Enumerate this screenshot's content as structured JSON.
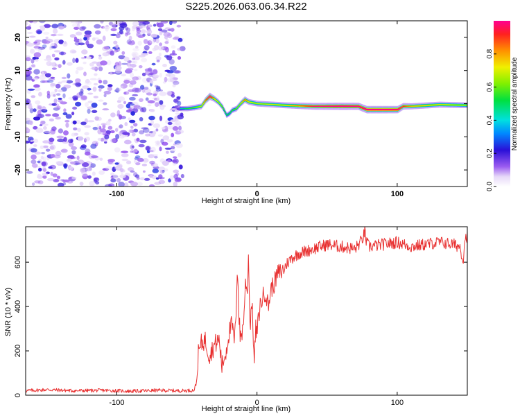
{
  "title": "S225.2026.063.06.34.R22",
  "chart_data": [
    {
      "type": "heatmap",
      "name": "spectrogram",
      "xlabel": "Height of straight line (km)",
      "ylabel": "Frequency (Hz)",
      "xlim": [
        -165,
        150
      ],
      "ylim": [
        -25,
        25
      ],
      "xticks": [
        -100,
        0,
        100
      ],
      "xtick_labels": [
        "-100",
        "0",
        "100"
      ],
      "yticks": [
        -20,
        -10,
        0,
        10,
        20
      ],
      "ytick_labels": [
        "-20",
        "-10",
        "0",
        "10",
        "20"
      ],
      "noise_region_x": [
        -165,
        -55
      ],
      "ridge": {
        "x": [
          -55,
          -50,
          -45,
          -40,
          -37,
          -34,
          -31,
          -28,
          -25,
          -22,
          -20,
          -18,
          -15,
          -12,
          -9,
          -6,
          0,
          20,
          40,
          60,
          72,
          78,
          90,
          100,
          104,
          110,
          130,
          150
        ],
        "freq": [
          -1.5,
          -1.5,
          -1.2,
          -0.8,
          1.0,
          2.2,
          1.5,
          0.5,
          -1.0,
          -3.5,
          -3.0,
          -2.0,
          -1.5,
          0.0,
          1.2,
          0.5,
          0.0,
          -0.5,
          -0.8,
          -0.8,
          -0.8,
          -1.8,
          -1.8,
          -1.8,
          -0.8,
          -0.8,
          -0.3,
          -0.5
        ],
        "amplitude": [
          0.25,
          0.35,
          0.45,
          0.5,
          0.7,
          0.9,
          0.6,
          0.5,
          0.45,
          0.35,
          0.35,
          0.4,
          0.45,
          0.5,
          0.7,
          0.55,
          0.5,
          0.55,
          0.8,
          0.95,
          0.9,
          0.98,
          0.98,
          0.95,
          0.75,
          0.6,
          0.55,
          0.5
        ]
      },
      "colorbar": {
        "label": "Normalized spectral amplitude",
        "range": [
          0.0,
          1.0
        ],
        "ticks": [
          0.0,
          0.2,
          0.4,
          0.6,
          0.8
        ],
        "tick_labels": [
          "0.0",
          "0.2",
          "0.4",
          "0.6",
          "0.8"
        ]
      }
    },
    {
      "type": "line",
      "name": "snr",
      "xlabel": "Height of straight line (km)",
      "ylabel": "SNR (10 * v/v)",
      "xlim": [
        -165,
        150
      ],
      "ylim": [
        0,
        760
      ],
      "xticks": [
        -100,
        0,
        100
      ],
      "xtick_labels": [
        "-100",
        "0",
        "100"
      ],
      "yticks": [
        0,
        200,
        400,
        600
      ],
      "ytick_labels": [
        "0",
        "200",
        "400",
        "600"
      ],
      "color": "#e83030",
      "series": [
        {
          "name": "SNR",
          "x": [
            -165,
            -150,
            -130,
            -110,
            -90,
            -70,
            -55,
            -45,
            -43,
            -42,
            -40,
            -37,
            -34,
            -30,
            -27,
            -25,
            -22,
            -20,
            -18,
            -16,
            -15,
            -14,
            -13,
            -12,
            -10,
            -8,
            -7,
            -6,
            -5,
            -4,
            -3,
            -2,
            -1,
            0,
            2,
            4,
            6,
            8,
            10,
            12,
            15,
            18,
            20,
            22,
            25,
            30,
            35,
            40,
            50,
            60,
            70,
            75,
            77,
            78,
            80,
            90,
            100,
            110,
            120,
            130,
            140,
            145,
            147,
            148,
            150
          ],
          "y": [
            20,
            25,
            20,
            22,
            18,
            22,
            20,
            22,
            60,
            180,
            230,
            250,
            180,
            230,
            250,
            130,
            200,
            280,
            320,
            240,
            350,
            600,
            380,
            260,
            300,
            520,
            450,
            650,
            300,
            420,
            350,
            130,
            300,
            280,
            400,
            440,
            470,
            400,
            480,
            500,
            550,
            560,
            580,
            600,
            620,
            640,
            650,
            660,
            680,
            670,
            660,
            700,
            740,
            690,
            670,
            680,
            690,
            670,
            680,
            690,
            680,
            670,
            600,
            700,
            720
          ]
        }
      ]
    }
  ]
}
